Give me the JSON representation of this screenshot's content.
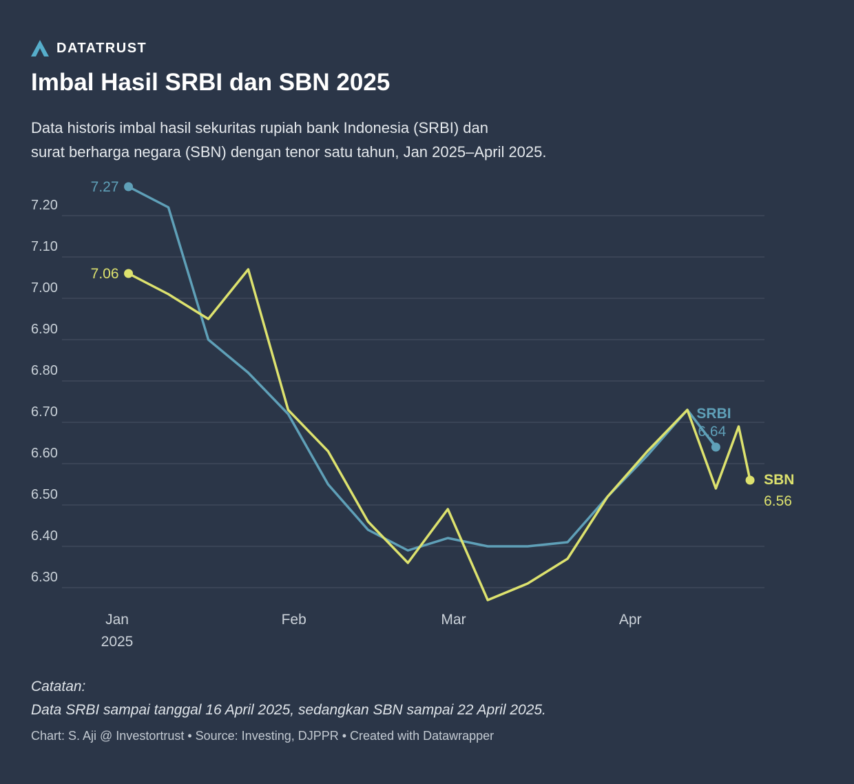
{
  "brand": {
    "name": "DATATRUST"
  },
  "header": {
    "title": "Imbal Hasil SRBI dan SBN 2025",
    "subtitle_line1": "Data historis imbal hasil sekuritas rupiah bank Indonesia (SRBI) dan",
    "subtitle_line2": "surat berharga negara (SBN) dengan tenor satu tahun, Jan 2025–April 2025."
  },
  "chart_data": {
    "type": "line",
    "title": "Imbal Hasil SRBI dan SBN 2025",
    "x_encoding": "day of year 2025 (estimated from axis)",
    "ylim": [
      6.25,
      7.3
    ],
    "grid": "horizontal",
    "legend_position": "inline-end-labels",
    "y_ticks": [
      7.2,
      7.1,
      7.0,
      6.9,
      6.8,
      6.7,
      6.6,
      6.5,
      6.4,
      6.3
    ],
    "x_ticks": [
      {
        "day": 1,
        "label": "Jan",
        "sublabel": "2025"
      },
      {
        "day": 32,
        "label": "Feb",
        "sublabel": ""
      },
      {
        "day": 60,
        "label": "Mar",
        "sublabel": ""
      },
      {
        "day": 91,
        "label": "Apr",
        "sublabel": ""
      }
    ],
    "series": [
      {
        "name": "SRBI",
        "color": "#5fa0b8",
        "start_label": "7.27",
        "end_label_value": "6.64",
        "end_label_position": "above-left",
        "points": [
          [
            3,
            7.27
          ],
          [
            10,
            7.22
          ],
          [
            17,
            6.9
          ],
          [
            24,
            6.82
          ],
          [
            31,
            6.72
          ],
          [
            38,
            6.55
          ],
          [
            45,
            6.44
          ],
          [
            52,
            6.39
          ],
          [
            59,
            6.42
          ],
          [
            66,
            6.4
          ],
          [
            73,
            6.4
          ],
          [
            80,
            6.41
          ],
          [
            87,
            6.52
          ],
          [
            94,
            6.62
          ],
          [
            101,
            6.73
          ],
          [
            106,
            6.64
          ]
        ]
      },
      {
        "name": "SBN",
        "color": "#dde26e",
        "start_label": "7.06",
        "end_label_value": "6.56",
        "end_label_position": "right",
        "points": [
          [
            3,
            7.06
          ],
          [
            10,
            7.01
          ],
          [
            17,
            6.95
          ],
          [
            24,
            7.07
          ],
          [
            31,
            6.73
          ],
          [
            38,
            6.63
          ],
          [
            45,
            6.46
          ],
          [
            52,
            6.36
          ],
          [
            59,
            6.49
          ],
          [
            66,
            6.27
          ],
          [
            73,
            6.31
          ],
          [
            80,
            6.37
          ],
          [
            87,
            6.52
          ],
          [
            94,
            6.63
          ],
          [
            101,
            6.73
          ],
          [
            106,
            6.54
          ],
          [
            110,
            6.69
          ],
          [
            112,
            6.56
          ]
        ]
      }
    ],
    "notes": "Data SRBI sampai tanggal 16 April 2025, sedangkan SBN sampai 22 April 2025."
  },
  "notes": {
    "label": "Catatan:",
    "text": "Data SRBI sampai tanggal 16 April 2025, sedangkan SBN sampai 22 April 2025."
  },
  "footer": {
    "text": "Chart: S. Aji @ Investortrust • Source: Investing, DJPPR • Created with Datawrapper"
  },
  "colors": {
    "background": "#2b3648",
    "srbi": "#5fa0b8",
    "sbn": "#dde26e",
    "grid": "rgba(255,255,255,0.15)",
    "logo": "#56aecb"
  }
}
